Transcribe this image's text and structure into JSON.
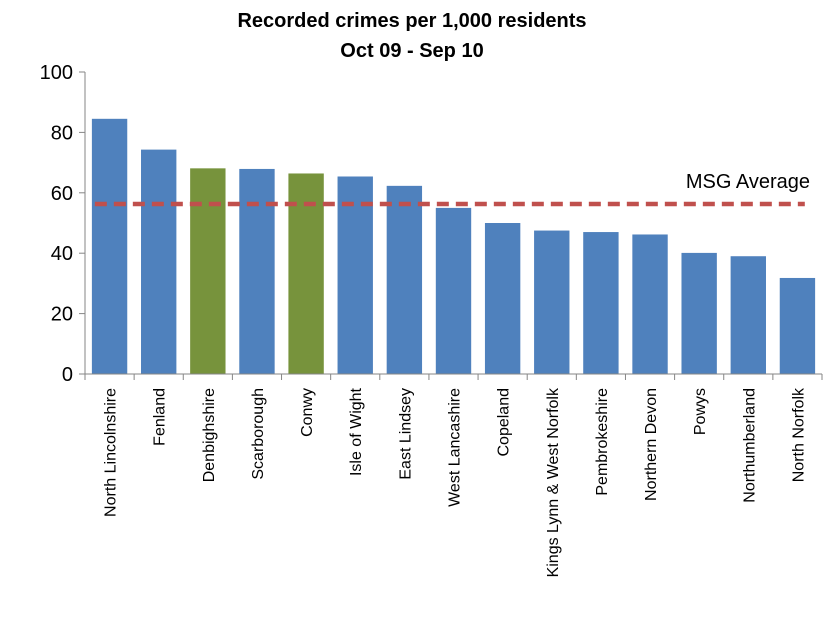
{
  "chart_data": {
    "type": "bar",
    "title": "Recorded crimes per 1,000 residents",
    "subtitle": "Oct 09 - Sep 10",
    "categories": [
      "North Lincolnshire",
      "Fenland",
      "Denbighshire",
      "Scarborough",
      "Conwy",
      "Isle of Wight",
      "East Lindsey",
      "West Lancashire",
      "Copeland",
      "Kings Lynn & West Norfolk",
      "Pembrokeshire",
      "Northern Devon",
      "Powys",
      "Northumberland",
      "North Norfolk"
    ],
    "values": [
      84.5,
      74.3,
      68.1,
      67.9,
      66.4,
      65.4,
      62.3,
      55.0,
      50.0,
      47.5,
      47.0,
      46.2,
      40.1,
      39.0,
      31.8
    ],
    "highlighted": [
      "Denbighshire",
      "Conwy"
    ],
    "ylim": [
      0,
      100
    ],
    "yticks": [
      "0",
      "20",
      "40",
      "60",
      "80",
      "100"
    ],
    "average": {
      "label": "MSG Average",
      "value": 56.3
    },
    "colors": {
      "bar": "#4f81bd",
      "highlight": "#77933c",
      "average": "#c0504d",
      "axis": "#868686"
    },
    "grid": false,
    "legend": "none"
  }
}
